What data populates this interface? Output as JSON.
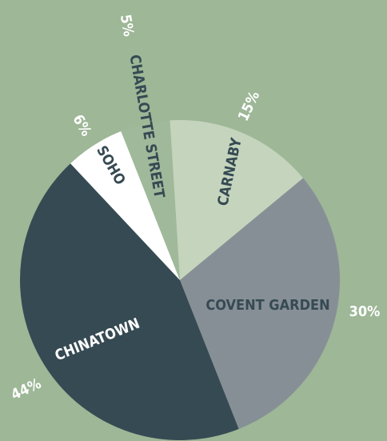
{
  "chart_data": {
    "type": "pie",
    "categories": [
      "CARNABY",
      "COVENT GARDEN",
      "CHINATOWN",
      "SOHO",
      "CHARLOTTE STREET"
    ],
    "values": [
      15,
      30,
      44,
      6,
      5
    ],
    "value_labels": [
      "15%",
      "30%",
      "44%",
      "6%",
      "5%"
    ],
    "colors": [
      "#c5d4bd",
      "#878f96",
      "#364a53",
      "#ffffff",
      "#a0b99a"
    ]
  }
}
